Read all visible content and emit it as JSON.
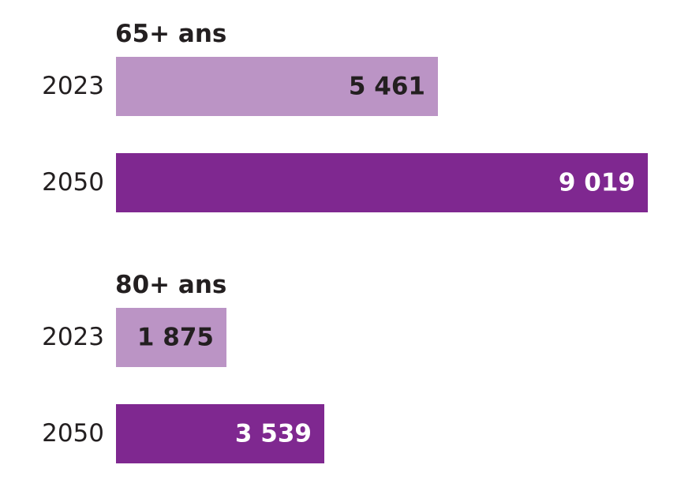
{
  "chart_data": {
    "type": "bar",
    "orientation": "horizontal",
    "xlim": [
      0,
      9019
    ],
    "groups": [
      {
        "title": "65+ ans",
        "bars": [
          {
            "year": "2023",
            "value": 5461,
            "label": "5 461"
          },
          {
            "year": "2050",
            "value": 9019,
            "label": "9 019"
          }
        ]
      },
      {
        "title": "80+ ans",
        "bars": [
          {
            "year": "2023",
            "value": 1875,
            "label": "1 875"
          },
          {
            "year": "2050",
            "value": 3539,
            "label": "3 539"
          }
        ]
      }
    ],
    "colors": {
      "2023": "#bb94c5",
      "2050": "#7f2890"
    },
    "value_label_colors": {
      "2023": "#231f20",
      "2050": "#ffffff"
    },
    "grid": false,
    "legend": "none"
  }
}
